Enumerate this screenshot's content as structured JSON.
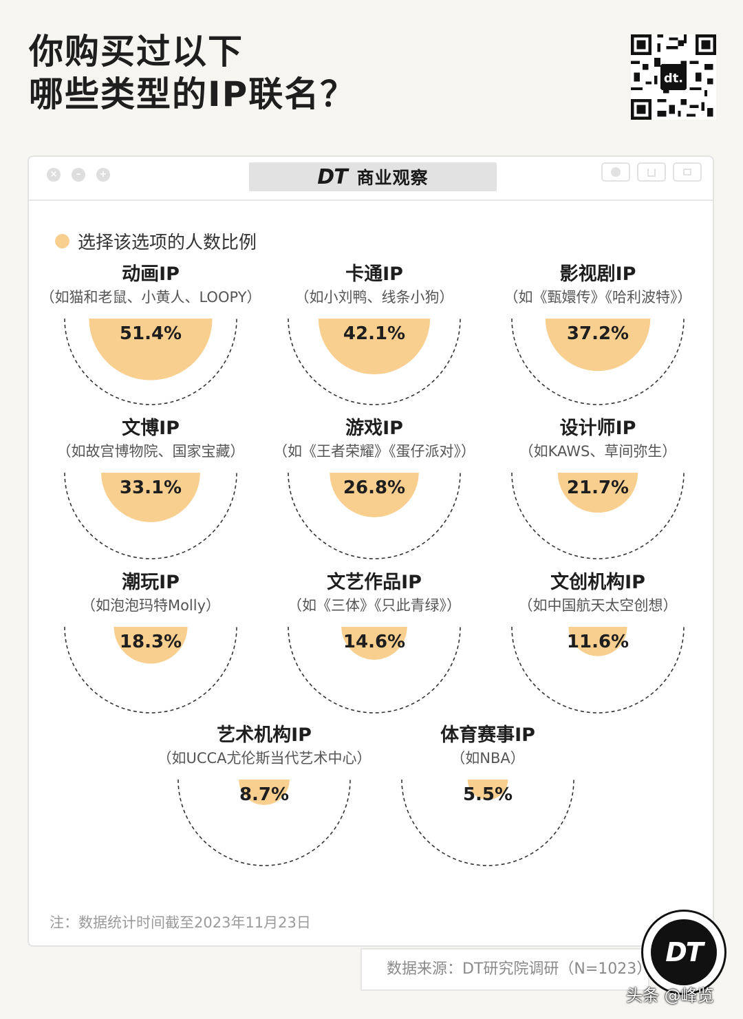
{
  "page": {
    "title_line1": "你购买过以下",
    "title_line2": "哪些类型的IP联名？"
  },
  "window": {
    "logo": "DT",
    "name": "商业观察"
  },
  "legend": {
    "label": "选择该选项的人数比例",
    "color": "#f9cf8f"
  },
  "note": "注：数据统计时间截至2023年11月23日",
  "source": "数据来源：DT研究院调研（N=1023）",
  "badge": "DT",
  "credit": "头条 @峰览",
  "colors": {
    "fill": "#f9cf8f",
    "dash": "#333333",
    "text": "#1e1e1e",
    "sub": "#555555"
  },
  "chart_data": {
    "type": "pie",
    "legend": "选择该选项的人数比例",
    "unit": "%",
    "categories": [
      {
        "name": "动画IP",
        "example": "（如猫和老鼠、小黄人、LOOPY）",
        "value": 51.4,
        "label": "51.4%"
      },
      {
        "name": "卡通IP",
        "example": "（如小刘鸭、线条小狗）",
        "value": 42.1,
        "label": "42.1%"
      },
      {
        "name": "影视剧IP",
        "example": "（如《甄嬛传》《哈利波特》）",
        "value": 37.2,
        "label": "37.2%"
      },
      {
        "name": "文博IP",
        "example": "（如故宫博物院、国家宝藏）",
        "value": 33.1,
        "label": "33.1%"
      },
      {
        "name": "游戏IP",
        "example": "（如《王者荣耀》《蛋仔派对》）",
        "value": 26.8,
        "label": "26.8%"
      },
      {
        "name": "设计师IP",
        "example": "（如KAWS、草间弥生）",
        "value": 21.7,
        "label": "21.7%"
      },
      {
        "name": "潮玩IP",
        "example": "（如泡泡玛特Molly）",
        "value": 18.3,
        "label": "18.3%"
      },
      {
        "name": "文艺作品IP",
        "example": "（如《三体》《只此青绿》）",
        "value": 14.6,
        "label": "14.6%"
      },
      {
        "name": "文创机构IP",
        "example": "（如中国航天太空创想）",
        "value": 11.6,
        "label": "11.6%"
      },
      {
        "name": "艺术机构IP",
        "example": "（如UCCA尤伦斯当代艺术中心）",
        "value": 8.7,
        "label": "8.7%"
      },
      {
        "name": "体育赛事IP",
        "example": "（如NBA）",
        "value": 5.5,
        "label": "5.5%"
      }
    ]
  }
}
